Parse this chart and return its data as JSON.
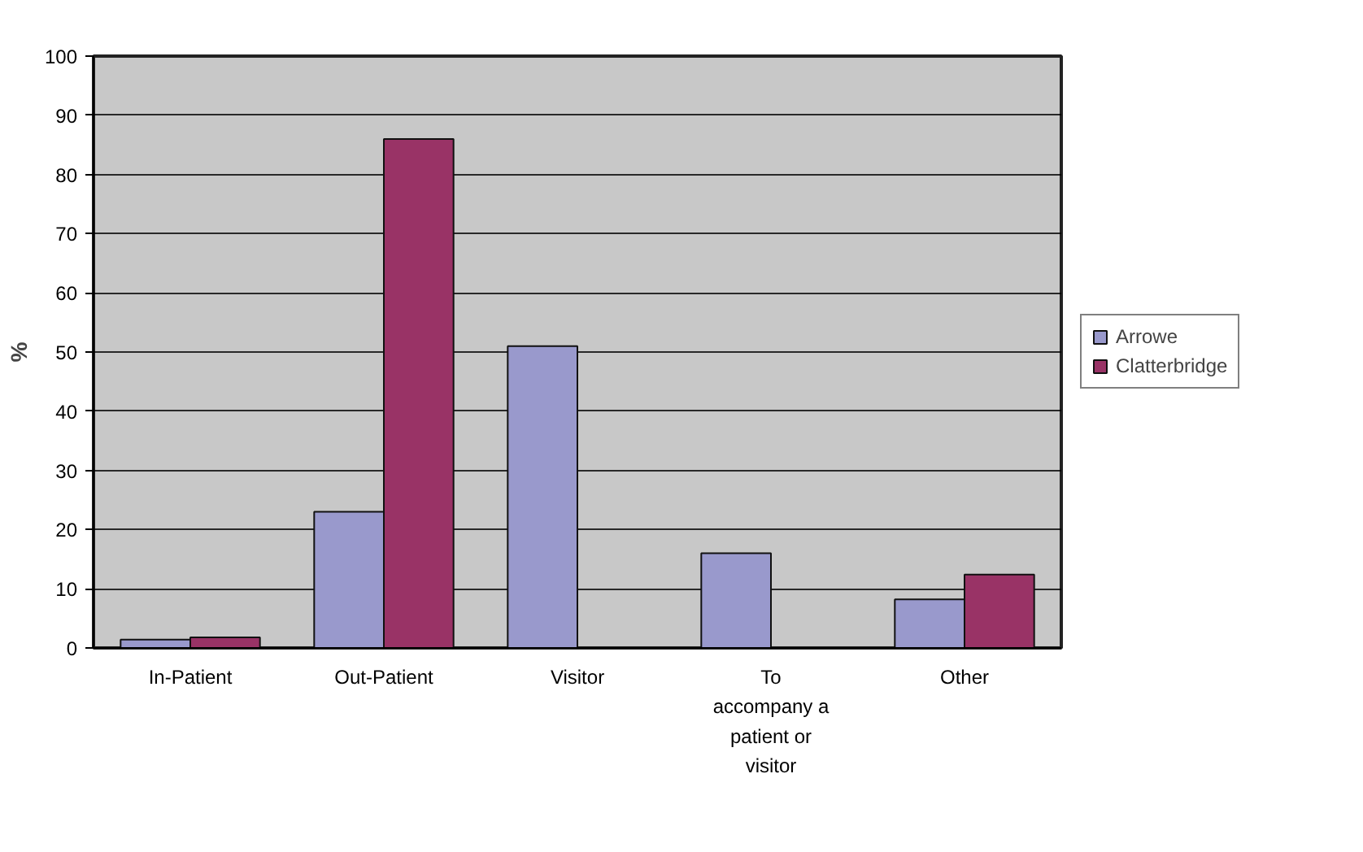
{
  "chart_data": {
    "type": "bar",
    "ylabel": "%",
    "categories": [
      "In-Patient",
      "Out-Patient",
      "Visitor",
      "To accompany a patient or visitor",
      "Other"
    ],
    "series": [
      {
        "name": "Arrowe",
        "color": "#9999cc",
        "values": [
          1.4,
          23,
          51,
          16,
          8.2
        ]
      },
      {
        "name": "Clatterbridge",
        "color": "#993366",
        "values": [
          1.8,
          86,
          null,
          null,
          12.4
        ]
      }
    ],
    "ylim": [
      0,
      100
    ],
    "yticks": [
      0,
      10,
      20,
      30,
      40,
      50,
      60,
      70,
      80,
      90,
      100
    ],
    "grid": "y",
    "legend": "right"
  }
}
